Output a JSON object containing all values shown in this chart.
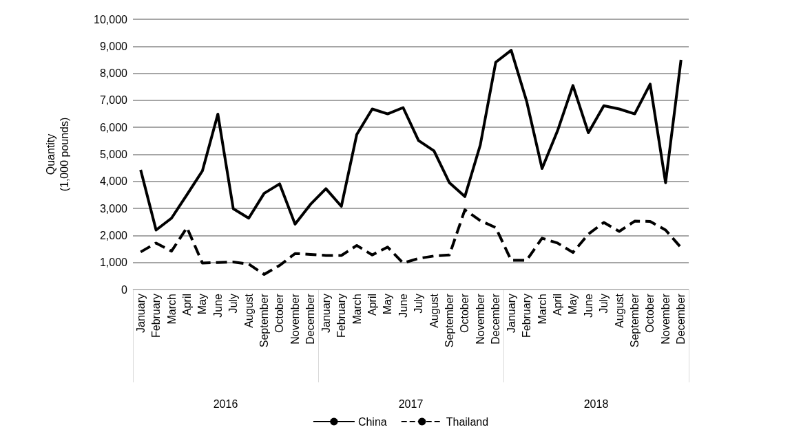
{
  "chart_data": {
    "type": "line",
    "ylabel": "Quantity\n(1,000 pounds)",
    "categories": [
      "January",
      "February",
      "March",
      "April",
      "May",
      "June",
      "July",
      "August",
      "September",
      "October",
      "November",
      "December",
      "January",
      "February",
      "March",
      "April",
      "May",
      "June",
      "July",
      "August",
      "September",
      "October",
      "November",
      "December",
      "January",
      "February",
      "March",
      "April",
      "May",
      "June",
      "July",
      "August",
      "September",
      "October",
      "November",
      "December"
    ],
    "annotations": [
      "2016",
      "2017",
      "2018"
    ],
    "series": [
      {
        "name": "China",
        "color": "#000000",
        "line_style": "solid",
        "values": [
          4430,
          2200,
          2640,
          3510,
          4390,
          6490,
          2990,
          2640,
          3560,
          3910,
          2420,
          3150,
          3730,
          3080,
          5740,
          6680,
          6500,
          6730,
          5510,
          5130,
          3950,
          3440,
          5350,
          8410,
          8850,
          6970,
          4480,
          5870,
          7550,
          5800,
          6800,
          6680,
          6500,
          7600,
          3950,
          8500
        ]
      },
      {
        "name": "Thailand",
        "color": "#000000",
        "line_style": "dashed",
        "values": [
          1390,
          1720,
          1420,
          2290,
          980,
          1000,
          1020,
          940,
          560,
          890,
          1330,
          1300,
          1260,
          1260,
          1630,
          1280,
          1570,
          980,
          1150,
          1240,
          1280,
          2950,
          2550,
          2290,
          1080,
          1080,
          1900,
          1720,
          1370,
          2050,
          2480,
          2150,
          2530,
          2520,
          2200,
          1550
        ]
      }
    ],
    "ylim": [
      0,
      10000
    ],
    "yticks": [
      0,
      {
        "value": 1000,
        "label": "1,000"
      },
      {
        "value": 2000,
        "label": "2,000"
      },
      {
        "value": 3000,
        "label": "3,000"
      },
      {
        "value": 4000,
        "label": "4,000"
      },
      {
        "value": 5000,
        "label": "5,000"
      },
      {
        "value": 6000,
        "label": "6,000"
      },
      {
        "value": 7000,
        "label": "7,000"
      },
      {
        "value": 8000,
        "label": "8,000"
      },
      {
        "value": 9000,
        "label": "9,000"
      },
      {
        "value": 10000,
        "label": "10,000"
      }
    ],
    "grid": "y",
    "legend": "bottom",
    "marker": "none"
  }
}
